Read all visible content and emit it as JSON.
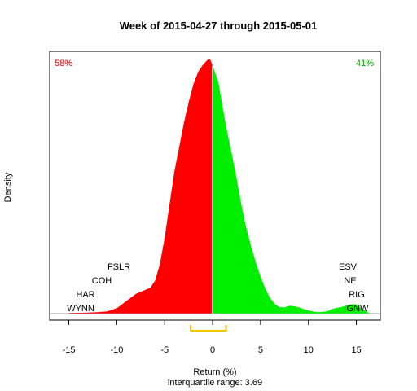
{
  "chart_data": {
    "type": "area",
    "title": "Week of 2015-04-27 through 2015-05-01",
    "xlabel": "Return (%)",
    "ylabel": "Density",
    "subtitle": "interquartile range: 3.69",
    "xlim": [
      -17,
      17.5
    ],
    "ylim": [
      -0.0033,
      0.128
    ],
    "x_ticks": [
      "-15",
      "-10",
      "-5",
      "0",
      "5",
      "10",
      "15"
    ],
    "x_tick_values": [
      -15,
      -10,
      -5,
      0,
      5,
      10,
      15
    ],
    "density": {
      "x": [
        -15,
        -14,
        -13,
        -12,
        -11,
        -10,
        -9,
        -8,
        -7,
        -6.5,
        -6,
        -5.5,
        -5,
        -4.5,
        -4,
        -3.5,
        -3,
        -2.5,
        -2,
        -1.5,
        -1,
        -0.5,
        -0.3,
        0,
        0.3,
        0.6,
        1,
        1.5,
        2,
        2.5,
        3,
        3.5,
        4,
        4.5,
        5,
        5.5,
        6,
        6.5,
        7,
        7.5,
        8,
        8.5,
        9,
        9.5,
        10,
        10.5,
        11,
        11.5,
        12,
        12.5,
        13,
        13.5,
        14,
        14.5,
        15,
        15.5,
        16,
        16.3
      ],
      "y": [
        0.0002,
        0.0003,
        0.0004,
        0.0006,
        0.001,
        0.0025,
        0.006,
        0.0095,
        0.0115,
        0.0125,
        0.016,
        0.024,
        0.037,
        0.053,
        0.069,
        0.081,
        0.093,
        0.103,
        0.112,
        0.118,
        0.1215,
        0.124,
        0.1245,
        0.121,
        0.117,
        0.113,
        0.102,
        0.089,
        0.078,
        0.066,
        0.053,
        0.042,
        0.033,
        0.025,
        0.018,
        0.012,
        0.0075,
        0.0045,
        0.003,
        0.003,
        0.0037,
        0.0035,
        0.003,
        0.0021,
        0.0014,
        0.0009,
        0.0006,
        0.0007,
        0.0011,
        0.0022,
        0.0028,
        0.0032,
        0.0039,
        0.0045,
        0.0043,
        0.0025,
        0.001,
        0.0003
      ]
    },
    "split_x": 0,
    "left_pct": "58%",
    "right_pct": "41%",
    "left_tickers": [
      "FSLR",
      "COH",
      "HAR",
      "WYNN"
    ],
    "right_tickers": [
      "ESV",
      "NE",
      "RIG",
      "GNW"
    ],
    "iqr_range": [
      -2.3,
      1.4
    ],
    "colors": {
      "negative": "#ff0000",
      "positive": "#00ee00",
      "left_pct_text": "#ee0000",
      "right_pct_text": "#00aa00",
      "split_line": "#ffffff",
      "iqr": "#ffc200",
      "baseline": "#bebebe"
    }
  }
}
